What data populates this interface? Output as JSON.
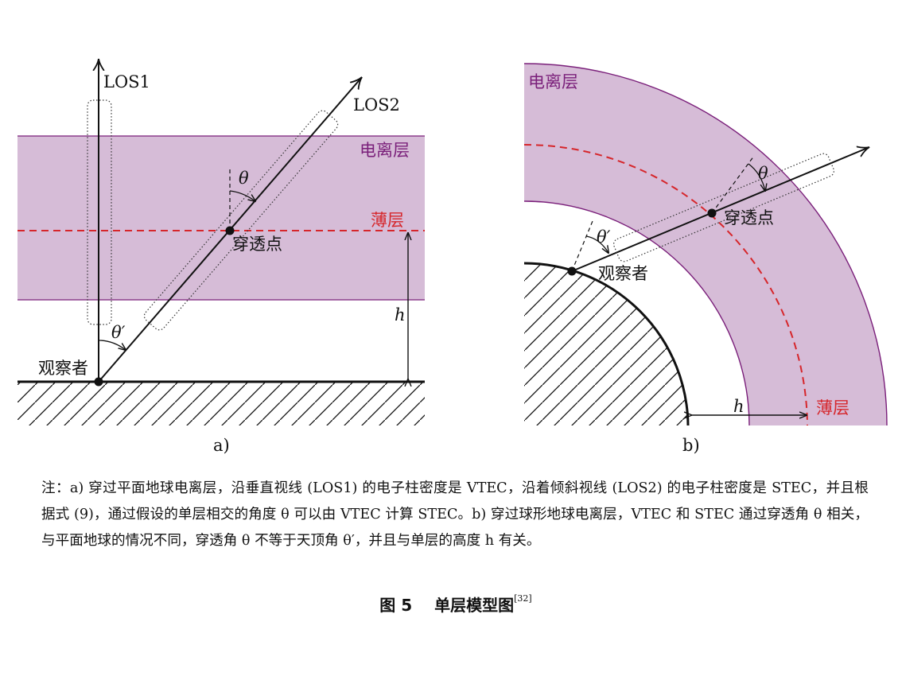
{
  "panel_a": {
    "los1_label": "LOS1",
    "los2_label": "LOS2",
    "ionosphere_label": "电离层",
    "thin_layer_label": "薄层",
    "pierce_point_label": "穿透点",
    "observer_label": "观察者",
    "theta_label": "θ",
    "theta_prime_label": "θ′",
    "height_label": "h",
    "panel_label": "a)"
  },
  "panel_b": {
    "ionosphere_label": "电离层",
    "thin_layer_label": "薄层",
    "pierce_point_label": "穿透点",
    "observer_label": "观察者",
    "theta_label": "θ",
    "theta_prime_label": "θ′",
    "height_label": "h",
    "panel_label": "b)"
  },
  "colors": {
    "ionosphere_fill": "#d6bcd7",
    "ionosphere_border": "#7a1f7a",
    "thin_layer": "#d6262b"
  },
  "note": "注：a) 穿过平面地球电离层，沿垂直视线 (LOS1) 的电子柱密度是 VTEC，沿着倾斜视线 (LOS2) 的电子柱密度是 STEC，并且根据式 (9)，通过假设的单层相交的角度 θ 可以由 VTEC 计算 STEC。b) 穿过球形地球电离层，VTEC 和 STEC 通过穿透角 θ 相关，与平面地球的情况不同，穿透角 θ 不等于天顶角 θ′，并且与单层的高度 h 有关。",
  "caption": {
    "figure_number": "图 5",
    "title": "单层模型图",
    "reference": "[32]"
  }
}
